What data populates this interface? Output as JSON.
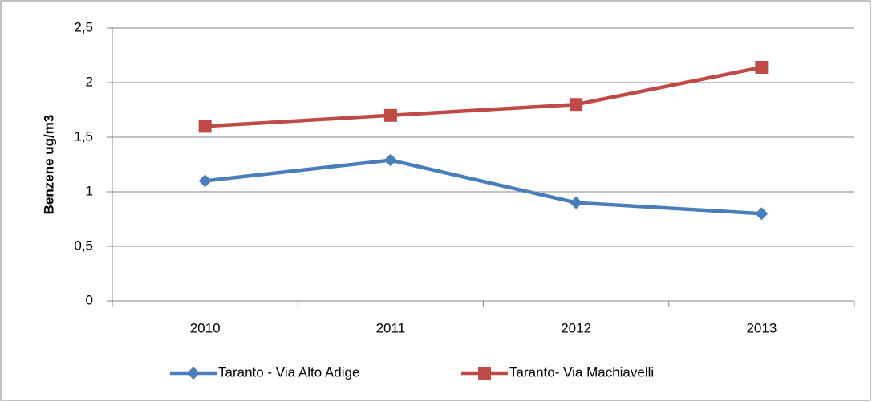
{
  "chart_data": {
    "type": "line",
    "y_label": "Benzene  ug/m3",
    "categories": [
      "2010",
      "2011",
      "2012",
      "2013"
    ],
    "series": [
      {
        "name": "Taranto - Via Alto Adige",
        "color": "#4a7ebb",
        "marker": "diamond",
        "values": [
          1.1,
          1.29,
          0.9,
          0.8
        ]
      },
      {
        "name": "Taranto- Via Machiavelli",
        "color": "#be4b48",
        "marker": "square",
        "values": [
          1.6,
          1.7,
          1.8,
          2.14
        ]
      }
    ],
    "ylim": [
      0,
      2.5
    ],
    "yticks": [
      0,
      {
        "value": 0.5,
        "label": "0,5"
      },
      1,
      {
        "value": 1.5,
        "label": "1,5"
      },
      2,
      {
        "value": 2.5,
        "label": "2,5"
      }
    ],
    "grid": true,
    "legend": "bottom"
  }
}
